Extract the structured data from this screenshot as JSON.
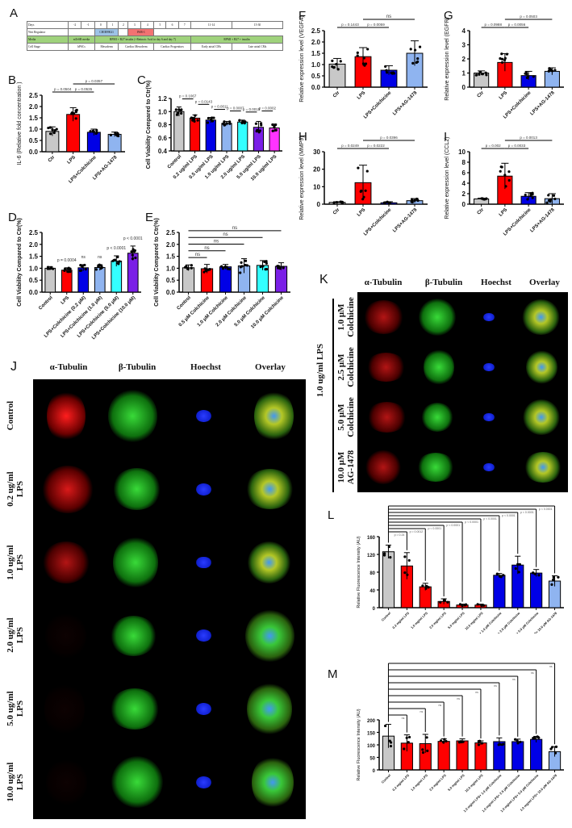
{
  "panels": {
    "A": {
      "letter": "A",
      "table": {
        "rows": [
          {
            "header": "Days",
            "cells": [
              "-2",
              "-1",
              "0",
              "1",
              "2",
              "3",
              "4",
              "5",
              "6",
              "7",
              "11-14",
              "15-30"
            ]
          },
          {
            "header": "Wnt Regulator",
            "cells": [
              "",
              "CHIR99021",
              "",
              "IWR-1",
              ""
            ]
          },
          {
            "header": "Media",
            "cells": [
              "mTeSR media",
              "RPMI + B27 insulin (+Retinoic Acid in day 6 and day 7)",
              "RPMI + B27 + insulin"
            ]
          },
          {
            "header": "Cell Stage",
            "cells": [
              "hPSCs",
              "Mesoderm",
              "Cardiac Mesoderm",
              "Cardiac Progenitors",
              "Early atrial CMs",
              "Late atrial CMs"
            ]
          }
        ]
      }
    },
    "J": {
      "letter": "J",
      "columns": [
        "α-Tubulin",
        "β-Tubulin",
        "Hoechst",
        "Overlay"
      ],
      "rows": [
        "Control",
        "0.2 ug/ml\nLPS",
        "1.0 ug/ml\nLPS",
        "2.0 ug/ml\nLPS",
        "5.0 ug/ml\nLPS",
        "10.0 ug/ml\nLPS"
      ]
    },
    "K": {
      "letter": "K",
      "columns": [
        "α-Tubulin",
        "β-Tubulin",
        "Hoechst",
        "Overlay"
      ],
      "group_label": "1.0 ug/ml LPS",
      "rows": [
        "1.0 μM\nColchicine",
        "2.5 μM\nColchicine",
        "5.0 μM\nColchicine",
        "10.0 μM\nAG-1478"
      ]
    }
  },
  "colors": {
    "gray": "#c8c8c8",
    "red": "#ff0000",
    "blue": "#0000e6",
    "lightblue": "#8fb4f0",
    "cyan": "#33ffff",
    "purple": "#7a1fe6",
    "magenta": "#ff33ff"
  },
  "chart_data": [
    {
      "id": "B",
      "type": "bar",
      "title": "",
      "ylabel": "IL-6 (Relative fold concentration )",
      "categories": [
        "Ctr",
        "LPS",
        "LPS+Colchicine",
        "LPS+AG-1478"
      ],
      "values": [
        0.9,
        1.65,
        0.86,
        0.77
      ],
      "errors": [
        0.2,
        0.3,
        0.14,
        0.1
      ],
      "ylim": [
        0,
        2.5
      ],
      "yticks": [
        "0.0",
        "0.5",
        "1.0",
        "1.5",
        "2.0",
        "2.5"
      ],
      "annotations": [
        "p = 0.0504",
        "p = 0.0535",
        "p = 0.0357"
      ]
    },
    {
      "id": "C",
      "type": "bar",
      "title": "",
      "ylabel": "Cell Viability Compared to Ctr(%)",
      "categories": [
        "Control",
        "0.2 ug/ml LPS",
        "0.5 ug/ml LPS",
        "1.0 ug/ml LPS",
        "2.0 ug/ml LPS",
        "5.0 ug/ml LPS",
        "10.0 ug/ml LPS"
      ],
      "values": [
        1.0,
        0.9,
        0.87,
        0.82,
        0.84,
        0.76,
        0.75
      ],
      "errors": [
        0.07,
        0.05,
        0.04,
        0.03,
        0.03,
        0.09,
        0.06
      ],
      "ylim": [
        0.4,
        1.2
      ],
      "yticks": [
        "0.4",
        "0.6",
        "0.8",
        "1.0",
        "1.2"
      ],
      "annotations": [
        "p = 0.1067",
        "p = 0.0143",
        "p = 0.0011",
        "p = 0.0007",
        "p = 0.0015",
        "p = 0.0002"
      ]
    },
    {
      "id": "D",
      "type": "bar",
      "title": "",
      "ylabel": "Cell Viability Compared to Ctr(%)",
      "categories": [
        "Control",
        "LPS",
        "LPS+Colchicine (0.2 μM)",
        "LPS+Colchicine (1.0 μM)",
        "LPS+Colchicine (5.0 μM)",
        "LPS+Colchicine (10.0 μM)"
      ],
      "values": [
        1.0,
        0.92,
        1.02,
        1.03,
        1.3,
        1.63
      ],
      "errors": [
        0.07,
        0.1,
        0.13,
        0.12,
        0.22,
        0.3
      ],
      "ylim": [
        0,
        2.5
      ],
      "yticks": [
        "0.0",
        "0.5",
        "1.0",
        "1.5",
        "2.0",
        "2.5"
      ],
      "annotations": [
        "p = 0.0004",
        "ns",
        "ns",
        "p < 0.0001",
        "p < 0.0001"
      ]
    },
    {
      "id": "E",
      "type": "bar",
      "title": "",
      "ylabel": "Cell Viability Compared to Ctr(%)",
      "categories": [
        "Control",
        "0.5 μM Colchicine",
        "1.0 μM Colchicine",
        "2.0 μM Colchicine",
        "5.0 μM Colchicine",
        "10.0 μM Colchicine"
      ],
      "values": [
        1.02,
        0.98,
        1.06,
        1.1,
        1.12,
        1.08
      ],
      "errors": [
        0.12,
        0.18,
        0.1,
        0.3,
        0.2,
        0.15
      ],
      "ylim": [
        0,
        2.5
      ],
      "yticks": [
        "0.0",
        "0.5",
        "1.0",
        "1.5",
        "2.0",
        "2.5"
      ],
      "annotations": [
        "ns",
        "ns",
        "ns",
        "ns",
        "ns"
      ]
    },
    {
      "id": "F",
      "type": "bar",
      "title": "",
      "ylabel": "Relative expression level (VEGFA)",
      "categories": [
        "Ctr",
        "LPS",
        "LPS+Colchicine",
        "LPS+AG-1478"
      ],
      "values": [
        1.02,
        1.35,
        0.75,
        1.5
      ],
      "errors": [
        0.25,
        0.4,
        0.2,
        0.55
      ],
      "ylim": [
        0,
        2.5
      ],
      "yticks": [
        "0.0",
        "0.5",
        "1.0",
        "1.5",
        "2.0",
        "2.5"
      ],
      "annotations": [
        "p = 0.1443",
        "p = 0.0059",
        "ns"
      ]
    },
    {
      "id": "G",
      "type": "bar",
      "title": "",
      "ylabel": "Relative expression level (EGFR)",
      "categories": [
        "Ctr",
        "LPS",
        "LPS+Colchicine",
        "LPS+AG-1478"
      ],
      "values": [
        1.0,
        1.75,
        0.82,
        1.12
      ],
      "errors": [
        0.15,
        0.62,
        0.3,
        0.25
      ],
      "ylim": [
        0,
        4
      ],
      "yticks": [
        "0",
        "1",
        "2",
        "3",
        "4"
      ],
      "annotations": [
        "p = 0.0988",
        "p = 0.0056",
        "p = 0.0503"
      ]
    },
    {
      "id": "H",
      "type": "bar",
      "title": "",
      "ylabel": "Relative expression level (MMP9)",
      "categories": [
        "Ctr",
        "LPS",
        "LPS+Colchicine",
        "LPS+AG-1478"
      ],
      "values": [
        1.0,
        12.3,
        0.8,
        2.0
      ],
      "errors": [
        0.4,
        10.0,
        0.6,
        1.2
      ],
      "ylim": [
        0,
        30
      ],
      "yticks": [
        "0",
        "10",
        "20",
        "30"
      ],
      "annotations": [
        "p = 0.0249",
        "p = 0.0222",
        "p = 0.0396"
      ]
    },
    {
      "id": "I",
      "type": "bar",
      "title": "",
      "ylabel": "Relative expression level (CCL2)",
      "categories": [
        "Ctr",
        "LPS",
        "LPS+Colchicine",
        "LPS+AG-1478"
      ],
      "values": [
        1.0,
        5.35,
        1.5,
        1.05
      ],
      "errors": [
        0.15,
        2.45,
        0.7,
        0.95
      ],
      "ylim": [
        0,
        10
      ],
      "yticks": [
        "0",
        "2",
        "4",
        "6",
        "8",
        "10"
      ],
      "annotations": [
        "p = 0.002",
        "p = 0.0033",
        "p = 0.0013"
      ]
    },
    {
      "id": "L",
      "type": "bar",
      "title": "",
      "ylabel": "Relative Fluorescence Intensity (AU)",
      "categories": [
        "Control",
        "0.2 mg/ml LPS",
        "1.0 mg/ml LPS",
        "2.0 mg/ml LPS",
        "5.0 mg/ml LPS",
        "10.0 mg/ml LPS",
        "1.0 mg/ml LPS+ 1.0 μM Colchicine",
        "1.0 mg/ml LPS+ 2.5 μM Colchicine",
        "1.0 mg/ml LPS+ 5.0 μM Colchicine",
        "1.0 mg/ml LPS+ 10.0 μM AG-1478"
      ],
      "values": [
        126,
        94,
        47,
        14,
        6,
        6,
        73,
        96,
        78,
        60
      ],
      "errors": [
        15,
        30,
        8,
        6,
        2,
        2,
        4,
        20,
        8,
        12
      ],
      "ylim": [
        0,
        160
      ],
      "yticks": [
        "0",
        "40",
        "80",
        "120",
        "160"
      ],
      "annotations": [
        "p = 0.24",
        "p = 0.0012",
        "p < 0.0001",
        "p < 0.0001",
        "p < 0.0001",
        "p < 0.0001",
        "p < 0.0001",
        "p < 0.0001",
        "p < 0.0001"
      ]
    },
    {
      "id": "M",
      "type": "bar",
      "title": "",
      "ylabel": "Relative Fluorescence Intensity (AU)",
      "categories": [
        "Control",
        "0.2 mg/ml LPS",
        "1.0 mg/ml LPS",
        "2.0 mg/ml LPS",
        "5.0 mg/ml LPS",
        "10.0 mg/ml LPS",
        "1.0 mg/ml LPS+ 1.0 μM Colchicine",
        "1.0 mg/ml LPS+ 2.5 μM Colchicine",
        "1.0 mg/ml LPS+ 5.0 μM Colchicine",
        "1.0 mg/ml LPS+ 10.0 μM AG-1478"
      ],
      "values": [
        135,
        107,
        105,
        114,
        116,
        108,
        113,
        113,
        122,
        73
      ],
      "errors": [
        47,
        33,
        37,
        10,
        8,
        8,
        15,
        10,
        12,
        20
      ],
      "ylim": [
        0,
        200
      ],
      "yticks": [
        "0",
        "50",
        "100",
        "150",
        "200"
      ],
      "annotations": [
        "ns",
        "ns",
        "ns",
        "ns",
        "ns",
        "ns",
        "ns",
        "ns",
        "ns"
      ]
    }
  ]
}
